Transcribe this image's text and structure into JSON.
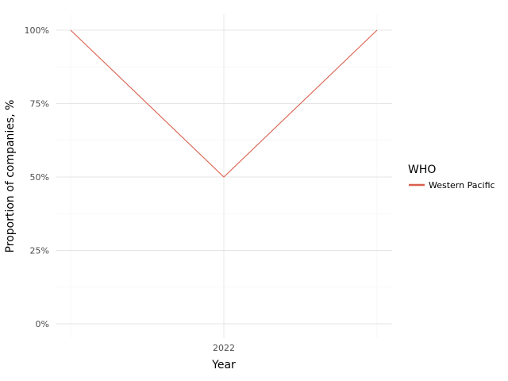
{
  "chart_data": {
    "type": "line",
    "title": "",
    "xlabel": "Year",
    "ylabel": "Proportion of companies, %",
    "x_tick_labels": [
      "2022"
    ],
    "y_tick_labels": [
      "0%",
      "25%",
      "50%",
      "75%",
      "100%"
    ],
    "ylim": [
      0,
      100
    ],
    "y_ticks": [
      0,
      25,
      50,
      75,
      100
    ],
    "grid": true,
    "legend": {
      "title": "WHO",
      "position": "right"
    },
    "series": [
      {
        "name": "Western Pacific",
        "color": "#d95f4c",
        "y": [
          100,
          50,
          100
        ]
      }
    ]
  }
}
